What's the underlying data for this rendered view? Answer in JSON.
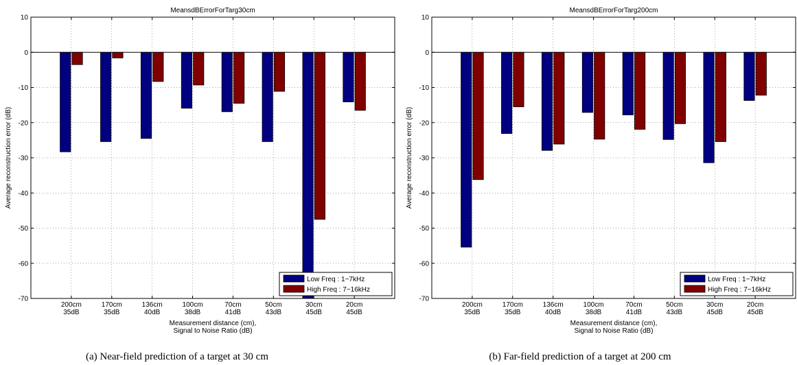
{
  "chart_data": [
    {
      "type": "bar",
      "title": "MeansdBErrorForTarg30cm",
      "ylabel": "Average reconstruction error (dB)",
      "xlabel_line1": "Measurement distance (cm),",
      "xlabel_line2": "Signal to Noise Ratio (dB)",
      "ylim": [
        -70,
        10
      ],
      "yticks": [
        10,
        0,
        -10,
        -20,
        -30,
        -40,
        -50,
        -60,
        -70
      ],
      "grid": true,
      "legend_position": "bottom-right",
      "categories": [
        {
          "distance": "200cm",
          "snr": "35dB"
        },
        {
          "distance": "170cm",
          "snr": "35dB"
        },
        {
          "distance": "136cm",
          "snr": "40dB"
        },
        {
          "distance": "100cm",
          "snr": "38dB"
        },
        {
          "distance": "70cm",
          "snr": "41dB"
        },
        {
          "distance": "50cm",
          "snr": "43dB"
        },
        {
          "distance": "30cm",
          "snr": "45dB"
        },
        {
          "distance": "20cm",
          "snr": "45dB"
        }
      ],
      "series": [
        {
          "name": "Low Freq : 1−7kHz",
          "color": "#000080",
          "values": [
            -28.3,
            -25.4,
            -24.5,
            -15.9,
            -16.9,
            -25.4,
            -70,
            -14.1
          ]
        },
        {
          "name": "High Freq : 7−16kHz",
          "color": "#800000",
          "values": [
            -3.5,
            -1.6,
            -8.3,
            -9.3,
            -14.5,
            -11.1,
            -47.5,
            -16.5
          ]
        }
      ],
      "caption": "(a)  Near-field prediction of a target at 30 cm"
    },
    {
      "type": "bar",
      "title": "MeansdBErrorForTarg200cm",
      "ylabel": "Average reconstruction error (dB)",
      "xlabel_line1": "Measurement distance (cm),",
      "xlabel_line2": "Signal to Noise Ratio (dB)",
      "ylim": [
        -70,
        10
      ],
      "yticks": [
        10,
        0,
        -10,
        -20,
        -30,
        -40,
        -50,
        -60,
        -70
      ],
      "grid": true,
      "legend_position": "bottom-right",
      "categories": [
        {
          "distance": "200cm",
          "snr": "35dB"
        },
        {
          "distance": "170cm",
          "snr": "35dB"
        },
        {
          "distance": "136cm",
          "snr": "40dB"
        },
        {
          "distance": "100cm",
          "snr": "38dB"
        },
        {
          "distance": "70cm",
          "snr": "41dB"
        },
        {
          "distance": "50cm",
          "snr": "43dB"
        },
        {
          "distance": "30cm",
          "snr": "45dB"
        },
        {
          "distance": "20cm",
          "snr": "45dB"
        }
      ],
      "series": [
        {
          "name": "Low Freq : 1−7kHz",
          "color": "#000080",
          "values": [
            -55.4,
            -23.1,
            -27.9,
            -17.1,
            -17.8,
            -24.8,
            -31.4,
            -13.7
          ]
        },
        {
          "name": "High Freq : 7−16kHz",
          "color": "#800000",
          "values": [
            -36.2,
            -15.5,
            -26.1,
            -24.7,
            -21.9,
            -20.3,
            -25.4,
            -12.2
          ]
        }
      ],
      "caption": "(b)  Far-field prediction of a target at 200 cm"
    }
  ]
}
